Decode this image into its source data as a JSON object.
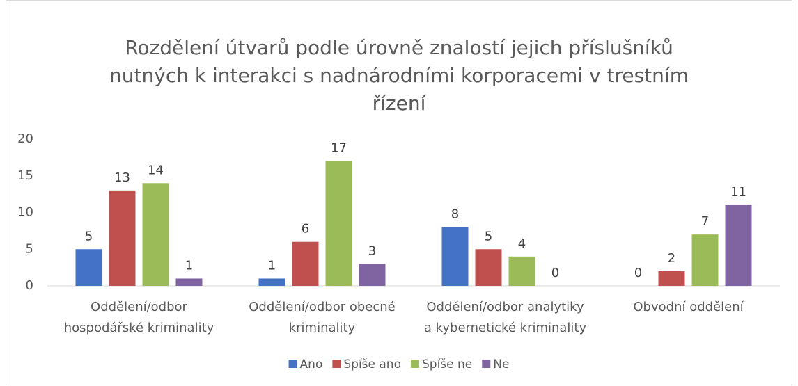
{
  "chart_data": {
    "type": "bar",
    "title": "Rozdělení útvarů podle úrovně znalostí jejich příslušníků\nnutných k interakci s nadnárodními korporacemi v trestním\nřízení",
    "categories": [
      "Oddělení/odbor\nhospodářské kriminality",
      "Oddělení/odbor obecné\nkriminality",
      "Oddělení/odbor analytiky\na kybernetické kriminality",
      "Obvodní oddělení"
    ],
    "series": [
      {
        "name": "Ano",
        "color": "#4472c4",
        "values": [
          5,
          1,
          8,
          0
        ]
      },
      {
        "name": "Spíše ano",
        "color": "#c0504d",
        "values": [
          13,
          6,
          5,
          2
        ]
      },
      {
        "name": "Spíše ne",
        "color": "#9bbb59",
        "values": [
          14,
          17,
          4,
          7
        ]
      },
      {
        "name": "Ne",
        "color": "#8064a2",
        "values": [
          1,
          3,
          0,
          11
        ]
      }
    ],
    "ylim": [
      0,
      20
    ],
    "yticks": [
      0,
      5,
      10,
      15,
      20
    ],
    "grid": false,
    "legend": "bottom"
  }
}
